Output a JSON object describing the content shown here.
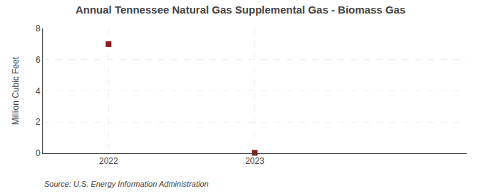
{
  "chart_data": {
    "type": "scatter",
    "title": "Annual Tennessee Natural Gas Supplemental Gas - Biomass Gas",
    "ylabel": "Million Cubic Feet",
    "source": "Source: U.S. Energy Information Administration",
    "x": [
      2022,
      2023
    ],
    "values": [
      7.0,
      0.027
    ],
    "color": "#8B1A1A",
    "marker": "square",
    "xlim": [
      2021.55,
      2024.45
    ],
    "xticks": [
      2022,
      2023
    ],
    "ylim": [
      0,
      8
    ],
    "yticks": [
      0,
      2,
      4,
      6,
      8
    ],
    "grid": true
  }
}
